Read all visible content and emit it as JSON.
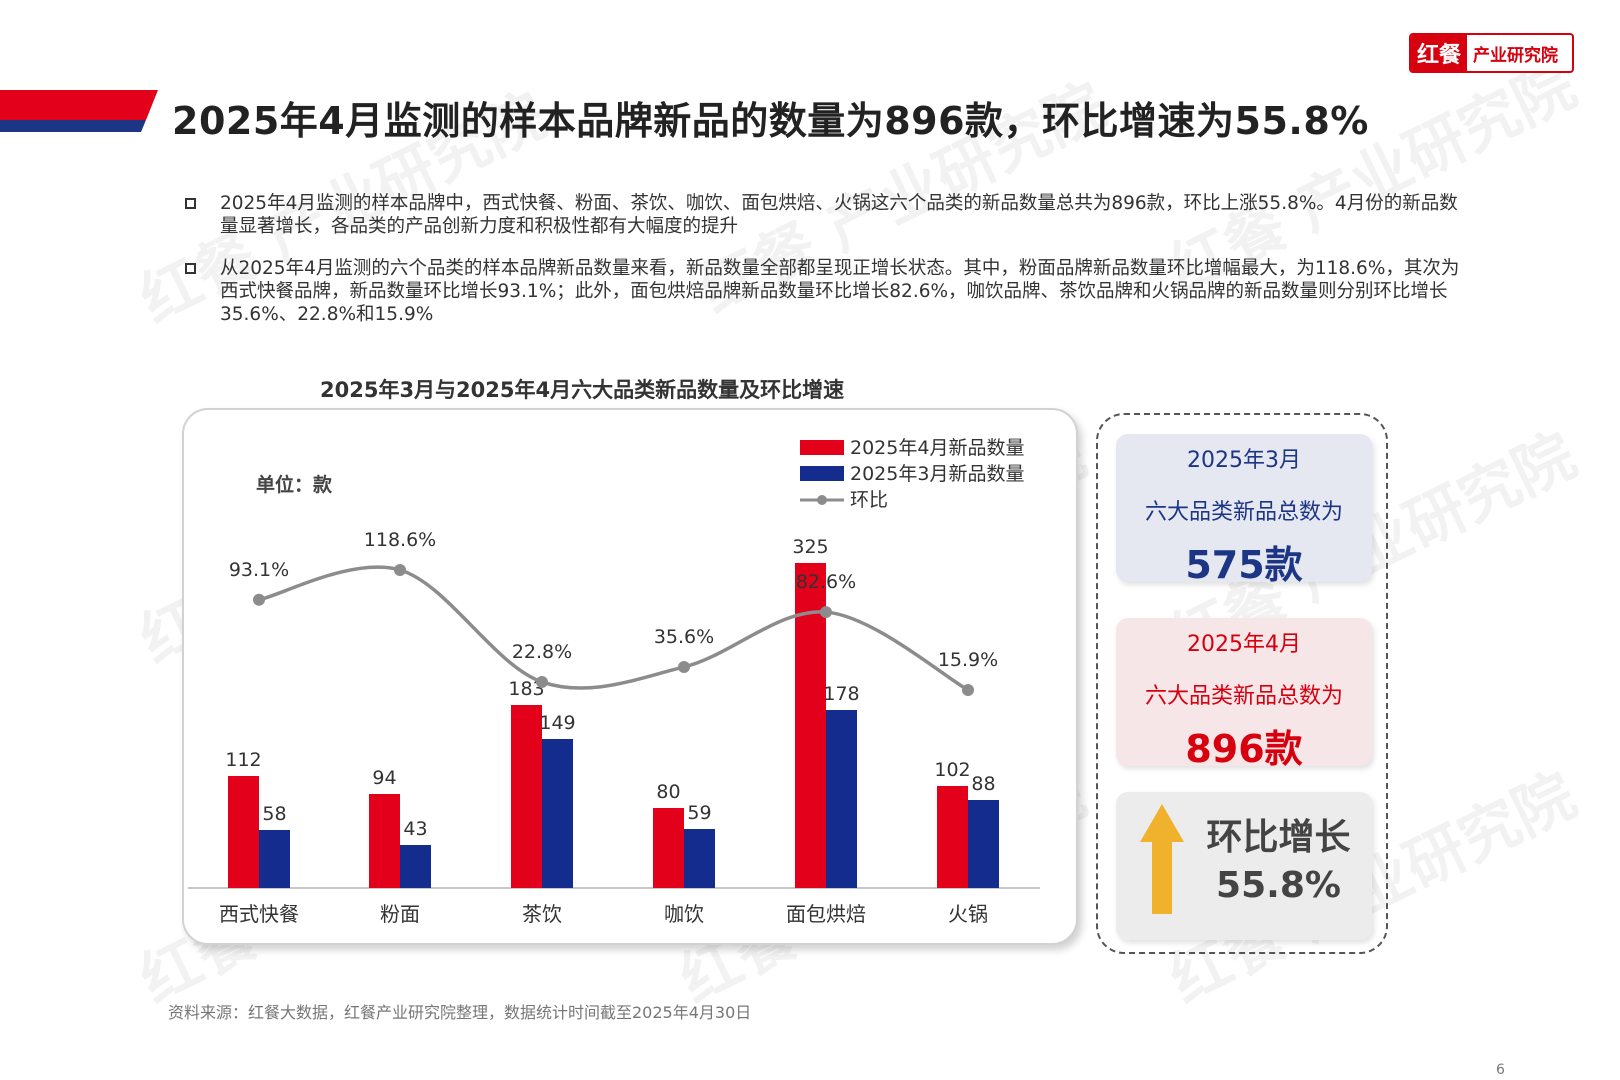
{
  "logo": {
    "mark": "红餐",
    "text": "产业研究院"
  },
  "title": "2025年4月监测的样本品牌新品的数量为896款，环比增速为55.8%",
  "bullets": [
    "2025年4月监测的样本品牌中，西式快餐、粉面、茶饮、咖饮、面包烘焙、火锅这六个品类的新品数量总共为896款，环比上涨55.8%。4月份的新品数量显著增长，各品类的产品创新力度和积极性都有大幅度的提升",
    "从2025年4月监测的六个品类的样本品牌新品数量来看，新品数量全部都呈现正增长状态。其中，粉面品牌新品数量环比增幅最大，为118.6%，其次为西式快餐品牌，新品数量环比增长93.1%；此外，面包烘焙品牌新品数量环比增长82.6%，咖饮品牌、茶饮品牌和火锅品牌的新品数量则分别环比增长35.6%、22.8%和15.9%"
  ],
  "chart_data": {
    "type": "bar",
    "title": "2025年3月与2025年4月六大品类新品数量及环比增速",
    "unit_label": "单位：款",
    "categories": [
      "西式快餐",
      "粉面",
      "茶饮",
      "咖饮",
      "面包烘焙",
      "火锅"
    ],
    "series": [
      {
        "name": "2025年4月新品数量",
        "values": [
          112,
          94,
          183,
          80,
          325,
          102
        ],
        "color": "#e3001b"
      },
      {
        "name": "2025年3月新品数量",
        "values": [
          58,
          43,
          149,
          59,
          178,
          88
        ],
        "color": "#142c8e"
      }
    ],
    "line_series": {
      "name": "环比",
      "values": [
        93.1,
        118.6,
        22.8,
        35.6,
        82.6,
        15.9
      ],
      "labels": [
        "93.1%",
        "118.6%",
        "22.8%",
        "35.6%",
        "82.6%",
        "15.9%"
      ],
      "color": "#8c8c8c"
    },
    "ylim": [
      0,
      360
    ],
    "legend_position": "top-right"
  },
  "cards": {
    "march": {
      "line1": "2025年3月",
      "line2": "六大品类新品总数为",
      "value": "575款"
    },
    "april": {
      "line1": "2025年4月",
      "line2": "六大品类新品总数为",
      "value": "896款"
    },
    "growth": {
      "line1": "环比增长",
      "line2": "55.8%"
    }
  },
  "colors": {
    "accent_red": "#d7000f",
    "accent_blue": "#1d3585",
    "arrow": "#f0b12c"
  },
  "source": "资料来源：红餐大数据，红餐产业研究院整理，数据统计时间截至2025年4月30日",
  "page_number": "6"
}
